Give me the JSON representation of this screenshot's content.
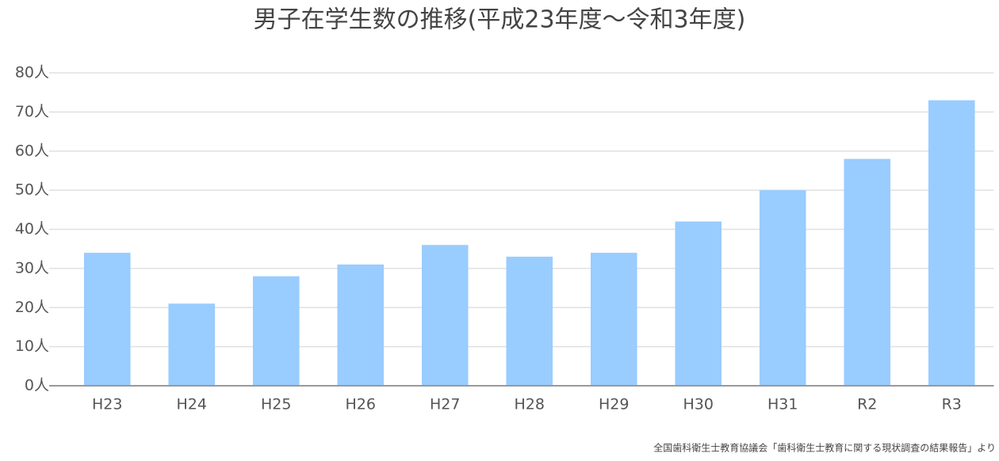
{
  "chart_data": {
    "type": "bar",
    "title": "男子在学生数の推移(平成23年度～令和3年度)",
    "categories": [
      "H23",
      "H24",
      "H25",
      "H26",
      "H27",
      "H28",
      "H29",
      "H30",
      "H31",
      "R2",
      "R3"
    ],
    "values": [
      34,
      21,
      28,
      31,
      36,
      33,
      34,
      42,
      50,
      58,
      73
    ],
    "color": "#99ccff",
    "ylim": [
      0,
      80
    ],
    "yticks": [
      {
        "value": 0,
        "label": "0人"
      },
      {
        "value": 10,
        "label": "10人"
      },
      {
        "value": 20,
        "label": "20人"
      },
      {
        "value": 30,
        "label": "30人"
      },
      {
        "value": 40,
        "label": "40人"
      },
      {
        "value": 50,
        "label": "50人"
      },
      {
        "value": 60,
        "label": "60人"
      },
      {
        "value": 70,
        "label": "70人"
      },
      {
        "value": 80,
        "label": "80人"
      }
    ],
    "grid": true,
    "source": "全国歯科衛生士教育協議会「歯科衛生士教育に関する現状調査の結果報告」より"
  }
}
